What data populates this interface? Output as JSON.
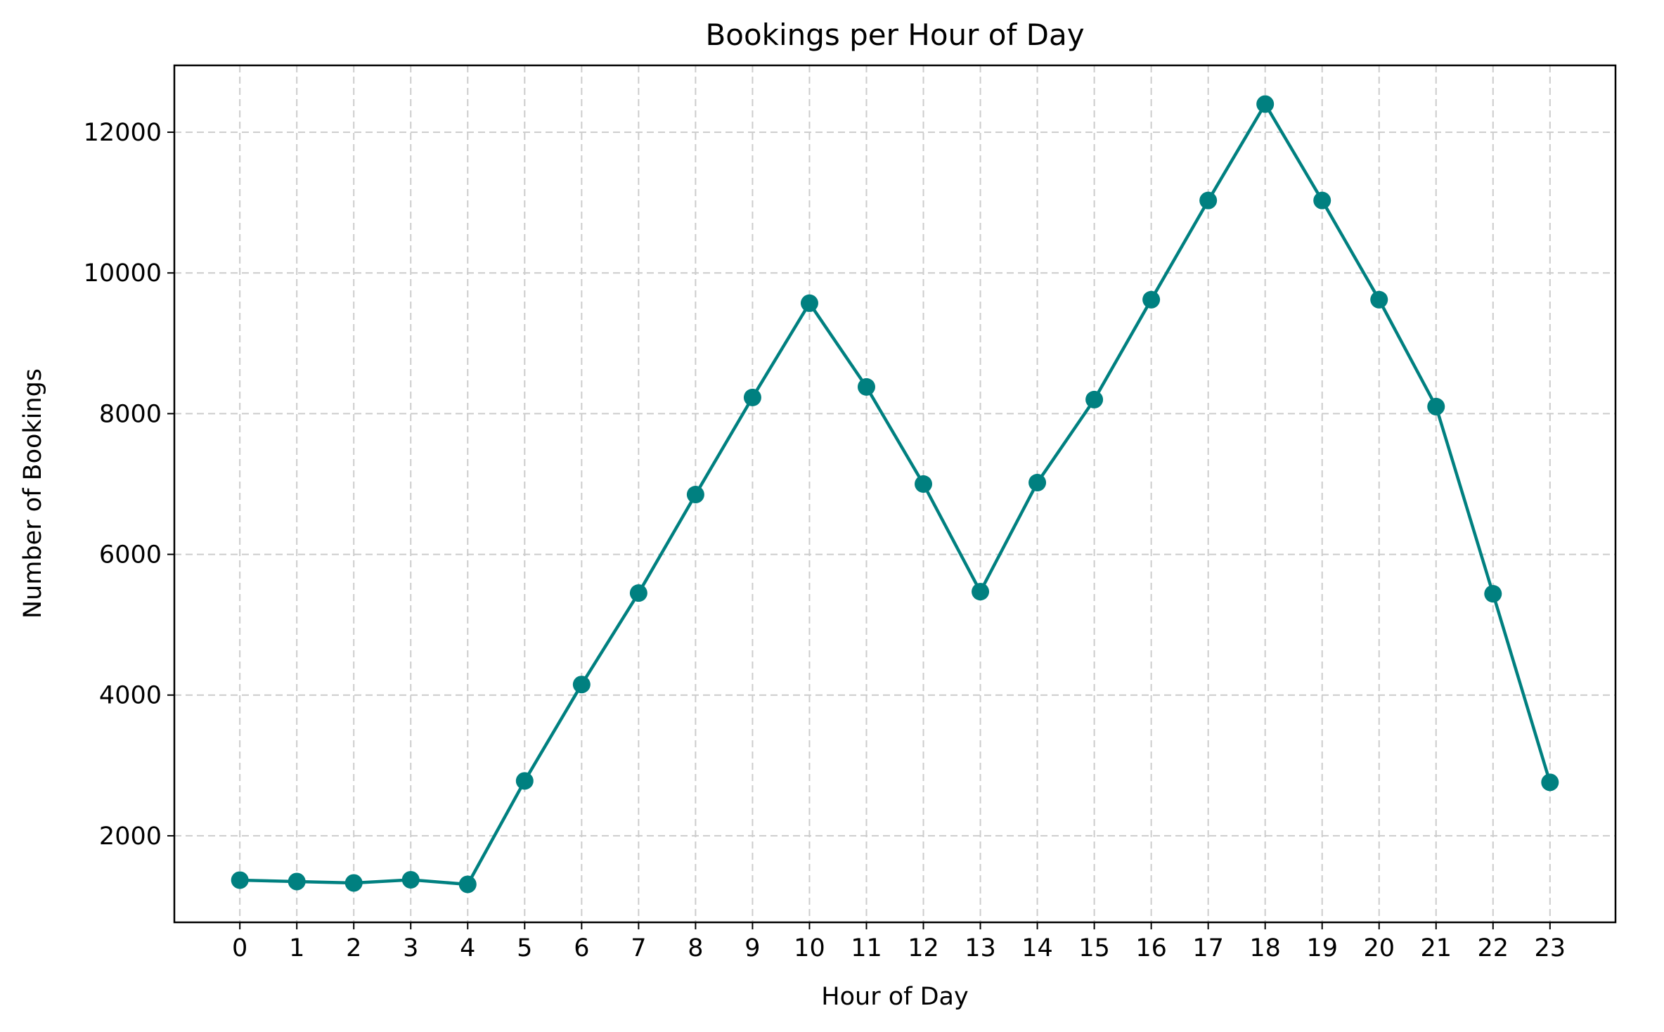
{
  "chart_data": {
    "type": "line",
    "title": "Bookings per Hour of Day",
    "xlabel": "Hour of Day",
    "ylabel": "Number of Bookings",
    "x": [
      0,
      1,
      2,
      3,
      4,
      5,
      6,
      7,
      8,
      9,
      10,
      11,
      12,
      13,
      14,
      15,
      16,
      17,
      18,
      19,
      20,
      21,
      22,
      23
    ],
    "x_tick_labels": [
      "0",
      "1",
      "2",
      "3",
      "4",
      "5",
      "6",
      "7",
      "8",
      "9",
      "10",
      "11",
      "12",
      "13",
      "14",
      "15",
      "16",
      "17",
      "18",
      "19",
      "20",
      "21",
      "22",
      "23"
    ],
    "series": [
      {
        "values": [
          1370,
          1350,
          1330,
          1375,
          1310,
          2780,
          4150,
          5450,
          6850,
          8230,
          9570,
          8380,
          7000,
          5470,
          7020,
          8200,
          9620,
          11030,
          12400,
          11030,
          9620,
          8100,
          5440,
          2760
        ],
        "color": "#008080",
        "marker": "circle"
      }
    ],
    "y_ticks": [
      2000,
      4000,
      6000,
      8000,
      10000,
      12000
    ],
    "y_tick_labels": [
      "2000",
      "4000",
      "6000",
      "8000",
      "10000",
      "12000"
    ],
    "xlim": [
      -1.15,
      24.15
    ],
    "ylim": [
      770,
      12950
    ],
    "grid": true,
    "legend": "none"
  }
}
